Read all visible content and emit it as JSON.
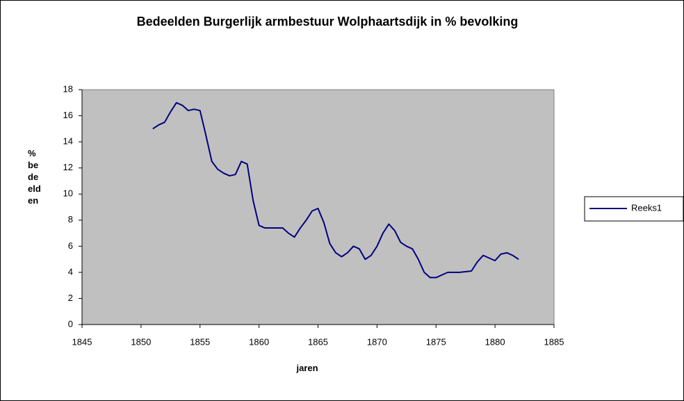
{
  "chart_data": {
    "type": "line",
    "title": "Bedeelden Burgerlijk armbestuur Wolphaartsdijk in % bevolking",
    "x_label": "jaren",
    "y_label": "% bedeelden",
    "x": [
      1851,
      1851.5,
      1852,
      1852.5,
      1853,
      1853.5,
      1854,
      1854.5,
      1855,
      1855.5,
      1856,
      1856.5,
      1857,
      1857.5,
      1858,
      1858.5,
      1859,
      1859.5,
      1860,
      1860.5,
      1861,
      1861.5,
      1862,
      1862.5,
      1863,
      1863.5,
      1864,
      1864.5,
      1865,
      1865.5,
      1866,
      1866.5,
      1867,
      1867.5,
      1868,
      1868.5,
      1869,
      1869.5,
      1870,
      1870.5,
      1871,
      1871.5,
      1872,
      1872.5,
      1873,
      1873.5,
      1874,
      1874.5,
      1875,
      1875.5,
      1876,
      1877,
      1878,
      1878.5,
      1879,
      1879.5,
      1880,
      1880.5,
      1881,
      1881.5,
      1882
    ],
    "series": [
      {
        "name": "Reeks1",
        "color": "#000080",
        "values": [
          15.0,
          15.3,
          15.5,
          16.3,
          17.0,
          16.8,
          16.4,
          16.5,
          16.4,
          14.5,
          12.5,
          11.9,
          11.6,
          11.4,
          11.5,
          12.5,
          12.3,
          9.5,
          7.6,
          7.4,
          7.4,
          7.4,
          7.4,
          7.0,
          6.7,
          7.4,
          8.0,
          8.7,
          8.9,
          7.8,
          6.2,
          5.5,
          5.2,
          5.5,
          6.0,
          5.8,
          5.0,
          5.3,
          6.0,
          7.0,
          7.7,
          7.2,
          6.3,
          6.0,
          5.8,
          5.0,
          4.0,
          3.6,
          3.6,
          3.8,
          4.0,
          4.0,
          4.1,
          4.8,
          5.3,
          5.1,
          4.9,
          5.4,
          5.5,
          5.3,
          5.0
        ]
      }
    ],
    "xlim": [
      1845,
      1885
    ],
    "xticks": [
      1845,
      1850,
      1855,
      1860,
      1865,
      1870,
      1875,
      1880,
      1885
    ],
    "ylim": [
      0,
      18
    ],
    "yticks": [
      0,
      2,
      4,
      6,
      8,
      10,
      12,
      14,
      16,
      18
    ],
    "plot_background": "#c0c0c0",
    "legend": "right"
  }
}
